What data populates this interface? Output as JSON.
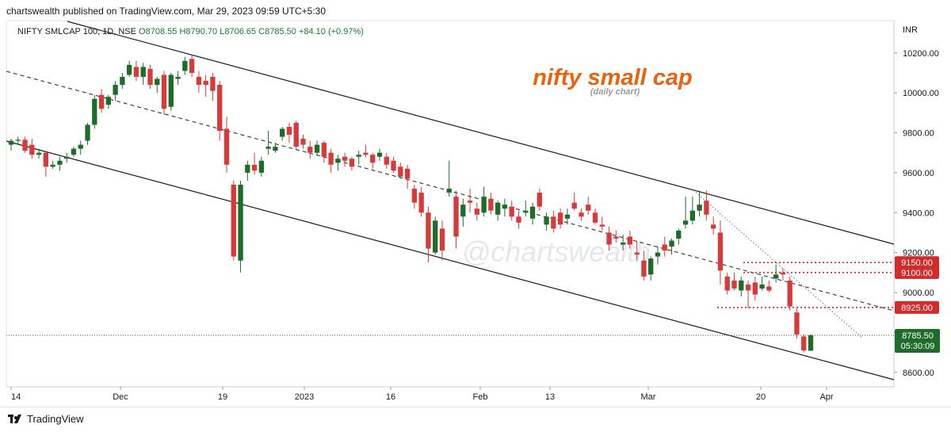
{
  "header": {
    "author": "chartswealth",
    "published_text": "published on TradingView.com, Mar 29, 2023 09:59 UTC+5:30"
  },
  "legend": {
    "symbol": "NIFTY SMLCAP 100, 1D, NSE",
    "open": "O8708.55",
    "high": "H8790.70",
    "low": "L8706.65",
    "close": "C8785.50",
    "change": "+84.10 (+0.97%)"
  },
  "colors": {
    "up": "#1e6b2a",
    "down": "#d63b3b",
    "title": "#e8620f",
    "level": "#d12b2b"
  },
  "chart_data": {
    "type": "candlestick",
    "title": "nifty small cap",
    "subtitle": "(daily chart)",
    "watermark": "@chartswealth",
    "currency": "INR",
    "ylim": [
      8550,
      10300
    ],
    "y_ticks": [
      "10200.00",
      "10000.00",
      "9800.00",
      "9600.00",
      "9400.00",
      "9200.00",
      "9000.00",
      "8800.00",
      "8600.00"
    ],
    "x_ticks": [
      "14",
      "Dec",
      "19",
      "2023",
      "16",
      "Feb",
      "13",
      "Mar",
      "20",
      "Apr"
    ],
    "last_price": "8785.50",
    "countdown": "05:30:09",
    "levels": [
      {
        "value": 9150,
        "label": "9150.00"
      },
      {
        "value": 9100,
        "label": "9100.00"
      },
      {
        "value": 8925,
        "label": "8925.00"
      }
    ],
    "candles": [
      [
        9740,
        9770,
        9710,
        9760
      ],
      [
        9760,
        9780,
        9740,
        9765
      ],
      [
        9765,
        9780,
        9700,
        9710
      ],
      [
        9740,
        9770,
        9670,
        9690
      ],
      [
        9690,
        9720,
        9670,
        9700
      ],
      [
        9700,
        9710,
        9580,
        9630
      ],
      [
        9630,
        9660,
        9620,
        9640
      ],
      [
        9640,
        9680,
        9610,
        9660
      ],
      [
        9670,
        9700,
        9650,
        9680
      ],
      [
        9690,
        9730,
        9680,
        9720
      ],
      [
        9720,
        9760,
        9690,
        9740
      ],
      [
        9760,
        9850,
        9740,
        9840
      ],
      [
        9840,
        9990,
        9820,
        9970
      ],
      [
        9990,
        10020,
        9900,
        9920
      ],
      [
        9940,
        9990,
        9920,
        9980
      ],
      [
        9990,
        10060,
        9960,
        10040
      ],
      [
        10040,
        10100,
        10020,
        10080
      ],
      [
        10090,
        10160,
        10080,
        10140
      ],
      [
        10130,
        10160,
        10060,
        10080
      ],
      [
        10080,
        10150,
        10040,
        10130
      ],
      [
        10120,
        10140,
        10020,
        10040
      ],
      [
        10040,
        10080,
        10000,
        10070
      ],
      [
        10090,
        10110,
        9890,
        9920
      ],
      [
        9930,
        10100,
        9910,
        10090
      ],
      [
        10070,
        10110,
        10040,
        10080
      ],
      [
        10110,
        10180,
        10090,
        10160
      ],
      [
        10170,
        10190,
        10080,
        10100
      ],
      [
        10080,
        10110,
        10000,
        10040
      ],
      [
        10060,
        10090,
        9980,
        10040
      ],
      [
        10080,
        10100,
        9960,
        10010
      ],
      [
        10040,
        10060,
        9760,
        9810
      ],
      [
        9820,
        9880,
        9600,
        9640
      ],
      [
        9540,
        9560,
        9160,
        9180
      ],
      [
        9160,
        9560,
        9100,
        9540
      ],
      [
        9600,
        9660,
        9560,
        9640
      ],
      [
        9640,
        9700,
        9590,
        9610
      ],
      [
        9600,
        9680,
        9580,
        9660
      ],
      [
        9720,
        9810,
        9690,
        9730
      ],
      [
        9710,
        9750,
        9700,
        9730
      ],
      [
        9780,
        9830,
        9760,
        9820
      ],
      [
        9830,
        9850,
        9750,
        9790
      ],
      [
        9850,
        9860,
        9720,
        9730
      ],
      [
        9770,
        9790,
        9720,
        9740
      ],
      [
        9730,
        9760,
        9670,
        9700
      ],
      [
        9700,
        9760,
        9690,
        9740
      ],
      [
        9750,
        9760,
        9650,
        9680
      ],
      [
        9700,
        9720,
        9600,
        9640
      ],
      [
        9650,
        9690,
        9610,
        9670
      ],
      [
        9680,
        9700,
        9630,
        9660
      ],
      [
        9670,
        9680,
        9610,
        9630
      ],
      [
        9680,
        9710,
        9640,
        9690
      ],
      [
        9700,
        9740,
        9680,
        9690
      ],
      [
        9690,
        9700,
        9620,
        9650
      ],
      [
        9680,
        9720,
        9660,
        9700
      ],
      [
        9680,
        9700,
        9620,
        9640
      ],
      [
        9660,
        9680,
        9600,
        9610
      ],
      [
        9630,
        9650,
        9570,
        9580
      ],
      [
        9620,
        9640,
        9520,
        9570
      ],
      [
        9520,
        9540,
        9420,
        9450
      ],
      [
        9500,
        9530,
        9380,
        9400
      ],
      [
        9400,
        9430,
        9150,
        9220
      ],
      [
        9200,
        9380,
        9190,
        9360
      ],
      [
        9320,
        9360,
        9160,
        9210
      ],
      [
        9500,
        9660,
        9480,
        9520
      ],
      [
        9480,
        9510,
        9220,
        9280
      ],
      [
        9380,
        9470,
        9330,
        9440
      ],
      [
        9460,
        9520,
        9400,
        9450
      ],
      [
        9420,
        9450,
        9360,
        9390
      ],
      [
        9400,
        9530,
        9380,
        9480
      ],
      [
        9470,
        9500,
        9390,
        9410
      ],
      [
        9390,
        9460,
        9360,
        9450
      ],
      [
        9420,
        9470,
        9380,
        9440
      ],
      [
        9430,
        9460,
        9360,
        9380
      ],
      [
        9380,
        9410,
        9320,
        9350
      ],
      [
        9400,
        9460,
        9380,
        9410
      ],
      [
        9370,
        9450,
        9340,
        9430
      ],
      [
        9500,
        9520,
        9410,
        9430
      ],
      [
        9340,
        9400,
        9310,
        9380
      ],
      [
        9380,
        9410,
        9300,
        9320
      ],
      [
        9400,
        9420,
        9320,
        9340
      ],
      [
        9370,
        9420,
        9340,
        9390
      ],
      [
        9450,
        9500,
        9410,
        9420
      ],
      [
        9400,
        9420,
        9360,
        9380
      ],
      [
        9440,
        9480,
        9390,
        9410
      ],
      [
        9400,
        9420,
        9340,
        9350
      ],
      [
        9340,
        9380,
        9310,
        9330
      ],
      [
        9300,
        9330,
        9210,
        9240
      ],
      [
        9280,
        9310,
        9250,
        9270
      ],
      [
        9240,
        9290,
        9210,
        9250
      ],
      [
        9280,
        9310,
        9220,
        9240
      ],
      [
        9200,
        9260,
        9160,
        9190
      ],
      [
        9160,
        9210,
        9060,
        9080
      ],
      [
        9090,
        9180,
        9060,
        9170
      ],
      [
        9180,
        9230,
        9140,
        9200
      ],
      [
        9240,
        9280,
        9180,
        9210
      ],
      [
        9230,
        9270,
        9190,
        9260
      ],
      [
        9270,
        9320,
        9240,
        9310
      ],
      [
        9340,
        9480,
        9320,
        9360
      ],
      [
        9360,
        9480,
        9340,
        9410
      ],
      [
        9410,
        9510,
        9380,
        9440
      ],
      [
        9460,
        9510,
        9360,
        9390
      ],
      [
        9340,
        9380,
        9290,
        9320
      ],
      [
        9300,
        9360,
        9040,
        9110
      ],
      [
        9080,
        9100,
        8990,
        9010
      ],
      [
        9060,
        9100,
        9010,
        9020
      ],
      [
        9010,
        9080,
        8980,
        9060
      ],
      [
        9040,
        9060,
        8920,
        9010
      ],
      [
        9050,
        9080,
        8960,
        8990
      ],
      [
        9020,
        9080,
        9010,
        9040
      ],
      [
        9030,
        9060,
        9000,
        9010
      ],
      [
        9070,
        9140,
        9050,
        9090
      ],
      [
        9100,
        9120,
        9060,
        9090
      ],
      [
        9060,
        9080,
        8910,
        8930
      ],
      [
        8900,
        8920,
        8770,
        8790
      ],
      [
        8780,
        8790,
        8700,
        8710
      ],
      [
        8708.55,
        8790.7,
        8706.65,
        8785.5
      ]
    ]
  }
}
